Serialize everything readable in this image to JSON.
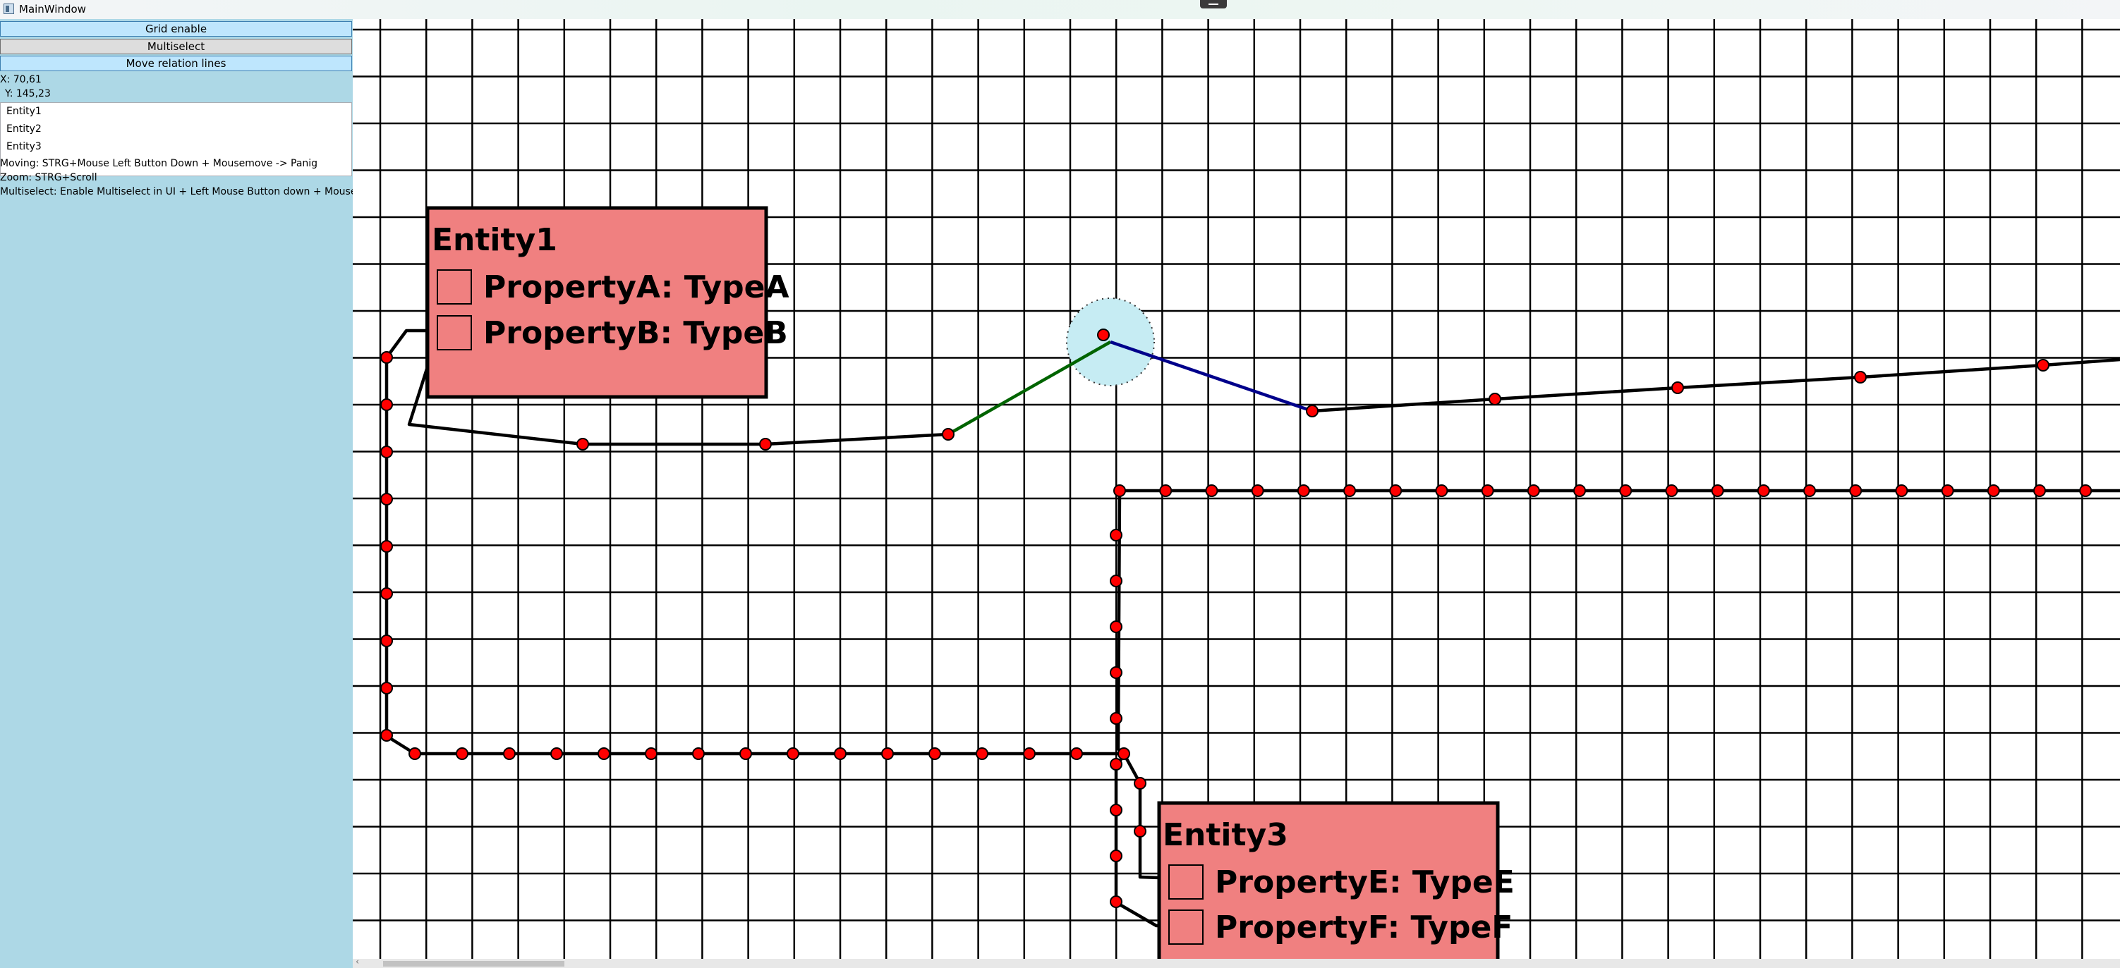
{
  "window": {
    "title": "MainWindow"
  },
  "sidebar": {
    "buttons": {
      "grid_enable": "Grid enable",
      "multiselect": "Multiselect",
      "move_relation_lines": "Move relation lines"
    },
    "coords": {
      "x": "X: 70,61",
      "y": "Y: 145,23"
    },
    "entities": [
      "Entity1",
      "Entity2",
      "Entity3"
    ],
    "help": {
      "moving": "Moving: STRG+Mouse Left Button Down + Mousemove -> Panig",
      "zoom": "Zoom: STRG+Scroll",
      "multiselect": "Multiselect: Enable Multiselect in UI + Left Mouse Button down + Mousemove"
    }
  },
  "diagram": {
    "entities": [
      {
        "name": "Entity1",
        "properties": [
          "PropertyA: TypeA",
          "PropertyB: TypeB"
        ]
      },
      {
        "name": "Entity3",
        "properties": [
          "PropertyE: TypeE",
          "PropertyF: TypeF"
        ]
      }
    ],
    "colors": {
      "entity_fill": "#f08080",
      "handle": "#ff0000",
      "selected_segment_a": "#006400",
      "selected_segment_b": "#00008b",
      "selection_halo": "#c6ecf3",
      "sidebar_background": "#add8e6"
    }
  }
}
